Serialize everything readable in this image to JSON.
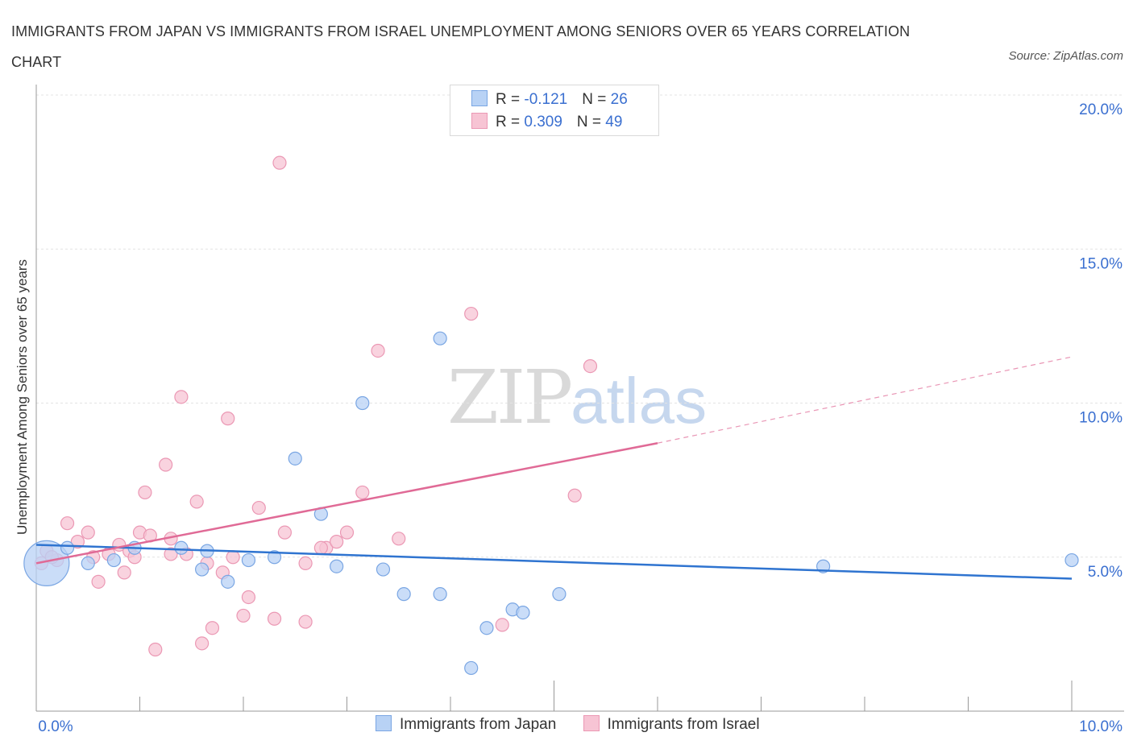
{
  "title": "IMMIGRANTS FROM JAPAN VS IMMIGRANTS FROM ISRAEL UNEMPLOYMENT AMONG SENIORS OVER 65 YEARS CORRELATION CHART",
  "source": "Source: ZipAtlas.com",
  "watermark": {
    "zip": "ZIP",
    "atlas": "atlas"
  },
  "legend": {
    "japan": {
      "r_label": "R = ",
      "r_value": "-0.121",
      "n_label": "N = ",
      "n_value": "26"
    },
    "israel": {
      "r_label": "R = ",
      "r_value": "0.309",
      "n_label": "N = ",
      "n_value": "49"
    }
  },
  "series_labels": {
    "japan": "Immigrants from Japan",
    "israel": "Immigrants from Israel"
  },
  "colors": {
    "japan_fill": "#b8d2f5",
    "japan_stroke": "#7aa6e3",
    "japan_line": "#2f74d0",
    "israel_fill": "#f7c4d4",
    "israel_stroke": "#eb98b4",
    "israel_line": "#e06a96",
    "axis_text": "#3a6fd0",
    "grid": "#e3e3e3"
  },
  "chart_data": {
    "type": "scatter",
    "title": "IMMIGRANTS FROM JAPAN VS IMMIGRANTS FROM ISRAEL UNEMPLOYMENT AMONG SENIORS OVER 65 YEARS CORRELATION CHART",
    "xlabel": "",
    "ylabel": "Unemployment Among Seniors over 65 years",
    "xlim": [
      0,
      10
    ],
    "ylim": [
      0,
      20
    ],
    "x_tick_labels": [
      "0.0%",
      "10.0%"
    ],
    "y_ticks": [
      5,
      10,
      15,
      20
    ],
    "y_tick_labels": [
      "5.0%",
      "10.0%",
      "15.0%",
      "20.0%"
    ],
    "grid": true,
    "legend_position": "top-center",
    "series": [
      {
        "name": "Immigrants from Japan",
        "R": -0.121,
        "N": 26,
        "points": [
          [
            0.1,
            4.8,
            3.5
          ],
          [
            0.3,
            5.3,
            1
          ],
          [
            0.5,
            4.8,
            1
          ],
          [
            0.75,
            4.9,
            1
          ],
          [
            0.95,
            5.3,
            1
          ],
          [
            1.4,
            5.3,
            1
          ],
          [
            1.65,
            5.2,
            1
          ],
          [
            1.6,
            4.6,
            1
          ],
          [
            1.85,
            4.2,
            1
          ],
          [
            2.05,
            4.9,
            1
          ],
          [
            2.3,
            5.0,
            1
          ],
          [
            2.5,
            8.2,
            1
          ],
          [
            2.75,
            6.4,
            1
          ],
          [
            2.9,
            4.7,
            1
          ],
          [
            3.15,
            10.0,
            1
          ],
          [
            3.35,
            4.6,
            1
          ],
          [
            3.55,
            3.8,
            1
          ],
          [
            3.9,
            12.1,
            1
          ],
          [
            3.9,
            3.8,
            1
          ],
          [
            4.2,
            1.4,
            1
          ],
          [
            4.35,
            2.7,
            1
          ],
          [
            4.6,
            3.3,
            1
          ],
          [
            4.7,
            3.2,
            1
          ],
          [
            5.05,
            3.8,
            1
          ],
          [
            7.6,
            4.7,
            1
          ],
          [
            10.0,
            4.9,
            1
          ]
        ],
        "trend": {
          "x": [
            0,
            10
          ],
          "y": [
            5.4,
            4.3
          ],
          "style": "solid"
        }
      },
      {
        "name": "Immigrants from Israel",
        "R": 0.309,
        "N": 49,
        "points": [
          [
            0.1,
            5.2,
            1
          ],
          [
            0.2,
            4.9,
            1
          ],
          [
            0.3,
            6.1,
            1
          ],
          [
            0.4,
            5.5,
            1
          ],
          [
            0.5,
            5.8,
            1
          ],
          [
            0.55,
            5.0,
            1
          ],
          [
            0.6,
            4.2,
            1
          ],
          [
            0.7,
            5.1,
            1
          ],
          [
            0.8,
            5.4,
            1
          ],
          [
            0.85,
            4.5,
            1
          ],
          [
            0.9,
            5.2,
            1
          ],
          [
            1.0,
            5.8,
            1
          ],
          [
            1.05,
            7.1,
            1
          ],
          [
            1.1,
            5.7,
            1
          ],
          [
            1.15,
            2.0,
            1
          ],
          [
            1.25,
            8.0,
            1
          ],
          [
            1.3,
            5.1,
            1
          ],
          [
            1.4,
            10.2,
            1
          ],
          [
            1.45,
            5.1,
            1
          ],
          [
            1.55,
            6.8,
            1
          ],
          [
            1.6,
            2.2,
            1
          ],
          [
            1.65,
            4.8,
            1
          ],
          [
            1.7,
            2.7,
            1
          ],
          [
            1.8,
            4.5,
            1
          ],
          [
            1.85,
            9.5,
            1
          ],
          [
            1.9,
            5.0,
            1
          ],
          [
            2.0,
            3.1,
            1
          ],
          [
            2.05,
            3.7,
            1
          ],
          [
            2.15,
            6.6,
            1
          ],
          [
            2.3,
            3.0,
            1
          ],
          [
            2.35,
            17.8,
            1
          ],
          [
            2.4,
            5.8,
            1
          ],
          [
            2.6,
            4.8,
            1
          ],
          [
            2.6,
            2.9,
            1
          ],
          [
            2.8,
            5.3,
            1
          ],
          [
            2.9,
            5.5,
            1
          ],
          [
            3.0,
            5.8,
            1
          ],
          [
            3.15,
            7.1,
            1
          ],
          [
            3.3,
            11.7,
            1
          ],
          [
            3.5,
            5.6,
            1
          ],
          [
            4.2,
            12.9,
            1
          ],
          [
            4.5,
            2.8,
            1
          ],
          [
            5.2,
            7.0,
            1
          ],
          [
            5.35,
            11.2,
            1
          ],
          [
            0.05,
            4.8,
            1
          ],
          [
            0.15,
            5.0,
            1
          ],
          [
            0.95,
            5.0,
            1
          ],
          [
            1.3,
            5.6,
            1
          ],
          [
            2.75,
            5.3,
            1
          ]
        ],
        "trend": {
          "x": [
            0,
            6
          ],
          "y": [
            4.8,
            8.7
          ],
          "style": "solid"
        },
        "trend_extension": {
          "x": [
            6,
            10
          ],
          "y": [
            8.7,
            11.5
          ],
          "style": "dashed"
        }
      }
    ]
  }
}
